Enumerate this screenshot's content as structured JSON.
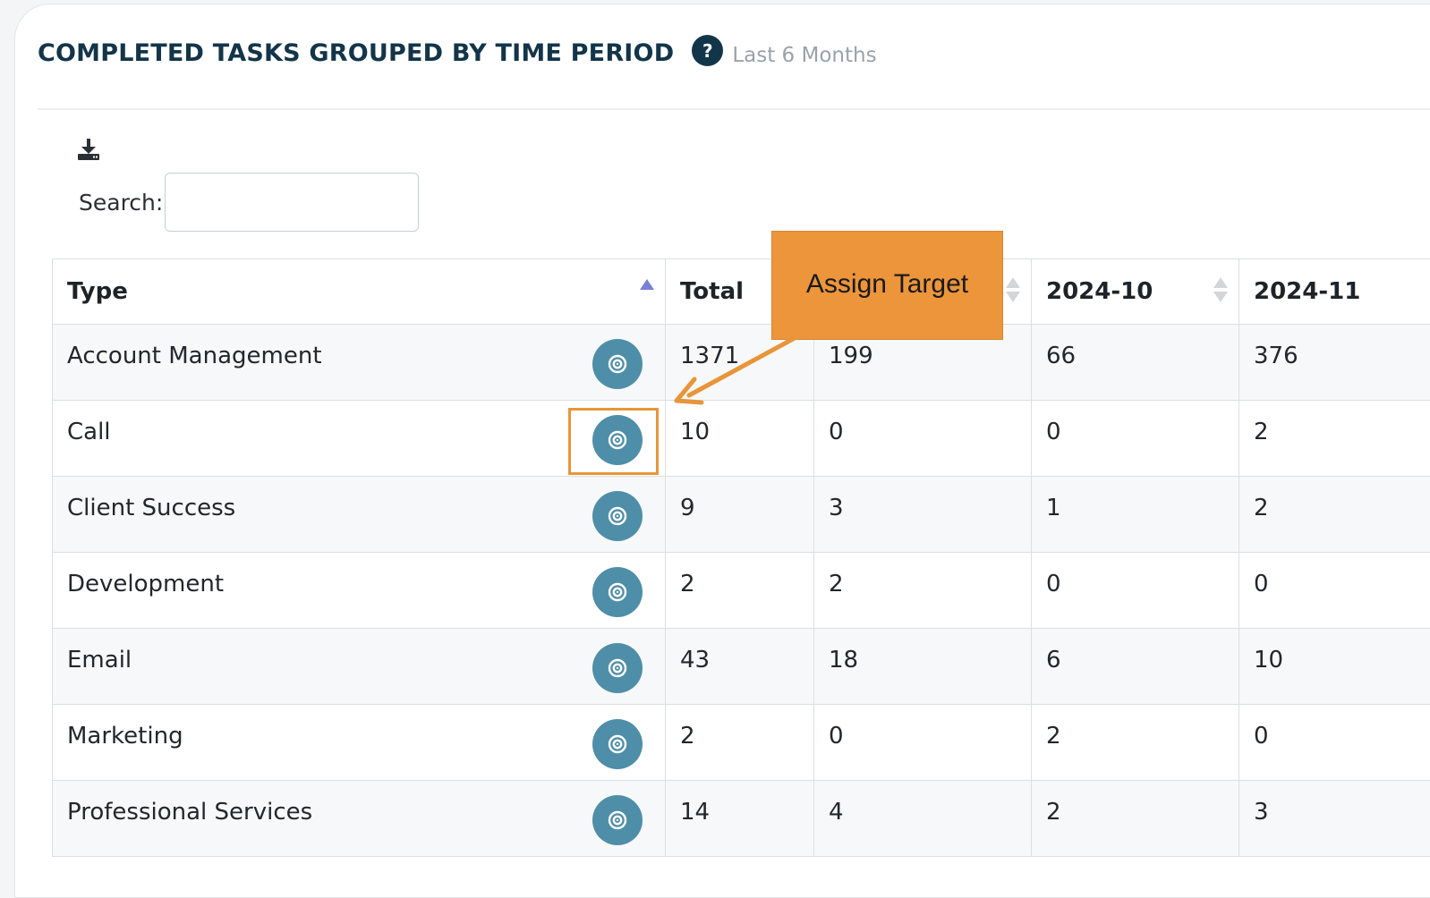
{
  "header": {
    "title": "COMPLETED TASKS GROUPED BY TIME PERIOD",
    "help_label": "?",
    "subtitle": "Last 6 Months"
  },
  "toolbar": {
    "download_icon": "download-icon"
  },
  "search": {
    "label": "Search:",
    "value": "",
    "placeholder": ""
  },
  "table": {
    "columns": [
      "Type",
      "Total",
      "",
      "2024-10",
      "2024-11"
    ],
    "rows": [
      {
        "type": "Account Management",
        "cells": [
          "1371",
          "199",
          "66",
          "376"
        ]
      },
      {
        "type": "Call",
        "cells": [
          "10",
          "0",
          "0",
          "2"
        ]
      },
      {
        "type": "Client Success",
        "cells": [
          "9",
          "3",
          "1",
          "2"
        ]
      },
      {
        "type": "Development",
        "cells": [
          "2",
          "2",
          "0",
          "0"
        ]
      },
      {
        "type": "Email",
        "cells": [
          "43",
          "18",
          "6",
          "10"
        ]
      },
      {
        "type": "Marketing",
        "cells": [
          "2",
          "0",
          "2",
          "0"
        ]
      },
      {
        "type": "Professional Services",
        "cells": [
          "14",
          "4",
          "2",
          "3"
        ]
      }
    ],
    "row_action_icon": "target-icon"
  },
  "annotation": {
    "callout_text": "Assign Target",
    "highlight_color": "#e8953a"
  },
  "colors": {
    "title": "#13354a",
    "accent_button": "#4f8ea8",
    "callout": "#ec953b",
    "sort_active": "#7a7fd6"
  }
}
